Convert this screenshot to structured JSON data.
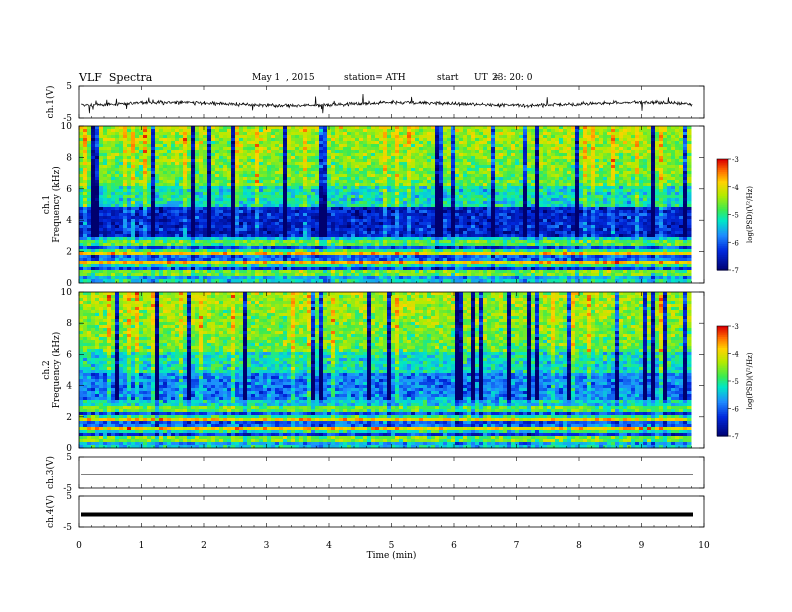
{
  "header": {
    "title": "VLF  Spectra",
    "date": "May 1  , 2015",
    "station": "station= ATH",
    "start_label": "start",
    "ut_label": "UT  =",
    "start_ut": "23: 20: 0"
  },
  "chart_data": [
    {
      "type": "line",
      "panel": "ch1-waveform",
      "ylabel": "ch.1(V)",
      "yticks": [
        "5",
        "-5"
      ],
      "ylim": [
        -5,
        5
      ],
      "xlim": [
        0,
        10
      ],
      "signal": "noisy waveform centred near 0 V with spikes, data to ~9.8 min"
    },
    {
      "type": "heatmap",
      "panel": "ch1-spectrogram",
      "ylabel": "ch.1\nFrequency (kHz)",
      "ylabel_lines": [
        "ch.1",
        "Frequency  (kHz)"
      ],
      "yticks": [
        "0",
        "2",
        "4",
        "6",
        "8",
        "10"
      ],
      "ylim": [
        0,
        10
      ],
      "xlim": [
        0,
        10
      ],
      "colorbar": {
        "label": "log(PSD)(V²/Hz)",
        "ticks": [
          "-3",
          "-4",
          "-5",
          "-6",
          "-7"
        ],
        "range": [
          -7,
          -3
        ]
      }
    },
    {
      "type": "heatmap",
      "panel": "ch2-spectrogram",
      "ylabel": "ch.2\nFrequency (kHz)",
      "ylabel_lines": [
        "ch.2",
        "Frequency  (kHz)"
      ],
      "yticks": [
        "0",
        "2",
        "4",
        "6",
        "8",
        "10"
      ],
      "ylim": [
        0,
        10
      ],
      "xlim": [
        0,
        10
      ],
      "colorbar": {
        "label": "log(PSD)(V²/Hz)",
        "ticks": [
          "-3",
          "-4",
          "-5",
          "-6",
          "-7"
        ],
        "range": [
          -7,
          -3
        ]
      }
    },
    {
      "type": "line",
      "panel": "ch3-waveform",
      "ylabel": "ch.3(V)",
      "yticks": [
        "5",
        "-5"
      ],
      "ylim": [
        -5,
        5
      ],
      "xlim": [
        0,
        10
      ],
      "signal": "flat line near 0 V"
    },
    {
      "type": "line",
      "panel": "ch4-waveform",
      "ylabel": "ch.4(V)",
      "yticks": [
        "5",
        "-5"
      ],
      "ylim": [
        -5,
        5
      ],
      "xlim": [
        0,
        10
      ],
      "signal": "thick flat line near 0 V"
    }
  ],
  "xaxis": {
    "label": "Time  (min)",
    "ticks": [
      "0",
      "1",
      "2",
      "3",
      "4",
      "5",
      "6",
      "7",
      "8",
      "9",
      "10"
    ],
    "range": [
      0,
      10
    ],
    "data_end": 9.8
  },
  "colors": {
    "low": "#00008a",
    "mid_low": "#1e64ff",
    "mid": "#00e6a0",
    "mid_high": "#a8e800",
    "high": "#ffd200",
    "max": "#e60000"
  }
}
